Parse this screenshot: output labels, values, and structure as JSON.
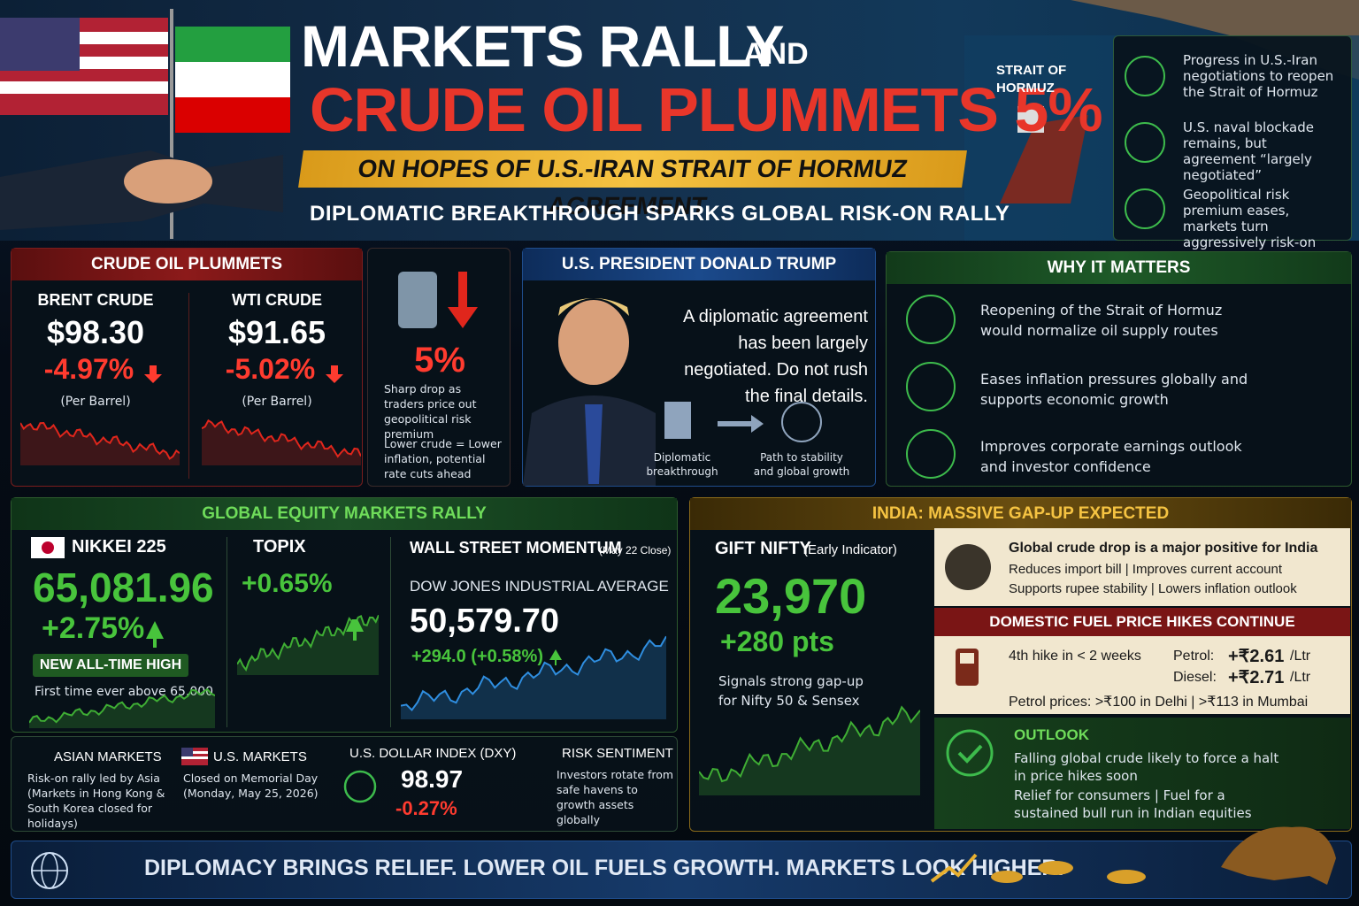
{
  "header": {
    "title_main": "MARKETS RALLY",
    "title_and": "AND",
    "title_sub": "CRUDE OIL PLUMMETS 5%",
    "banner": "ON HOPES OF U.S.-IRAN STRAIT OF HORMUZ AGREEMENT",
    "tagline": "DIPLOMATIC BREAKTHROUGH SPARKS GLOBAL RISK-ON RALLY",
    "location": "STRAIT OF HORMUZ"
  },
  "highlights": [
    "Progress in U.S.-Iran negotiations to reopen the Strait of Hormuz",
    "U.S. naval blockade remains, but agreement “largely negotiated”",
    "Geopolitical risk premium eases, markets turn aggressively risk-on"
  ],
  "crude": {
    "title": "CRUDE OIL PLUMMETS",
    "items": [
      {
        "name": "BRENT CRUDE",
        "price": "$98.30",
        "change": "-4.97%",
        "unit": "(Per Barrel)"
      },
      {
        "name": "WTI CRUDE",
        "price": "$91.65",
        "change": "-5.02%",
        "unit": "(Per Barrel)"
      }
    ],
    "drop": "5%",
    "notes": [
      "Sharp drop as traders price out geopolitical risk premium",
      "Lower crude = Lower inflation, potential rate cuts ahead"
    ]
  },
  "trump": {
    "title": "U.S. PRESIDENT DONALD TRUMP",
    "quote": "A diplomatic agreement has been largely negotiated. Do not rush the final details.",
    "steps": [
      "Diplomatic breakthrough",
      "Path to stability and global growth"
    ]
  },
  "why": {
    "title": "WHY IT MATTERS",
    "items": [
      "Reopening of the Strait of Hormuz would normalize oil supply routes",
      "Eases inflation pressures globally and supports economic growth",
      "Improves corporate earnings outlook and investor confidence"
    ]
  },
  "equity": {
    "title": "GLOBAL EQUITY MARKETS RALLY",
    "nikkei": {
      "name": "NIKKEI 225",
      "value": "65,081.96",
      "change": "+2.75%",
      "badge": "NEW ALL-TIME HIGH",
      "note": "First time ever above 65,000"
    },
    "topix": {
      "name": "TOPIX",
      "change": "+0.65%"
    },
    "wall": {
      "title": "WALL STREET MOMENTUM",
      "date": "(May 22 Close)",
      "index": "DOW JONES INDUSTRIAL AVERAGE",
      "value": "50,579.70",
      "change": "+294.0 (+0.58%)"
    }
  },
  "tiles": [
    {
      "title": "ASIAN MARKETS",
      "text": "Risk-on rally led by Asia (Markets in Hong Kong & South Korea closed for holidays)"
    },
    {
      "title": "U.S. MARKETS",
      "text": "Closed on Memorial Day (Monday, May 25, 2026)"
    },
    {
      "title": "U.S. DOLLAR INDEX (DXY)",
      "value": "98.97",
      "change": "-0.27%"
    },
    {
      "title": "RISK SENTIMENT",
      "text": "Investors rotate from safe havens to growth assets globally"
    }
  ],
  "india": {
    "title": "INDIA: MASSIVE GAP-UP EXPECTED",
    "gift": {
      "name": "GIFT NIFTY",
      "sub": "(Early Indicator)",
      "value": "23,970",
      "change": "+280 pts",
      "note": "Signals strong gap-up for Nifty 50 & Sensex"
    },
    "positive": {
      "title": "Global crude drop is a major positive for India",
      "lines": [
        "Reduces import bill | Improves current account",
        "Supports rupee stability | Lowers inflation outlook"
      ]
    },
    "fuel": {
      "title": "DOMESTIC FUEL PRICE HIKES CONTINUE",
      "hike": "4th hike in < 2 weeks",
      "prices": [
        {
          "fuel": "Petrol:",
          "change": "+₹2.61",
          "unit": "/Ltr"
        },
        {
          "fuel": "Diesel:",
          "change": "+₹2.71",
          "unit": "/Ltr"
        }
      ],
      "note": "Petrol prices: >₹100 in Delhi | >₹113 in Mumbai"
    },
    "outlook": {
      "title": "OUTLOOK",
      "lines": [
        "Falling global crude likely to force a halt in price hikes soon",
        "Relief for consumers | Fuel for a sustained bull run in Indian equities"
      ]
    }
  },
  "footer": "DIPLOMACY BRINGS RELIEF. LOWER OIL FUELS GROWTH. MARKETS LOOK HIGHER."
}
